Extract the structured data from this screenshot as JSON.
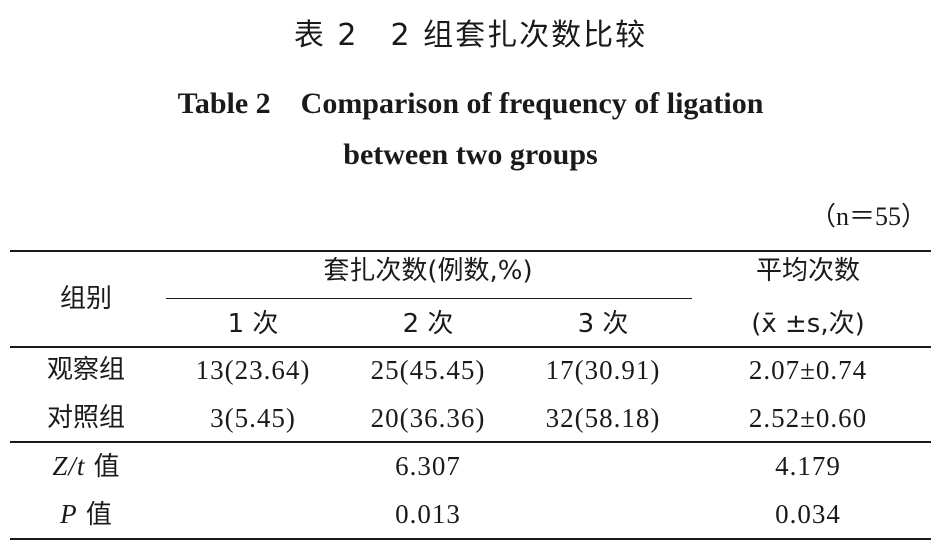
{
  "title_zh": "表 2　2 组套扎次数比较",
  "title_en_line1": "Table 2　Comparison of frequency of ligation",
  "title_en_line2": "between two groups",
  "note": "（n＝55）",
  "table": {
    "header": {
      "group": "组别",
      "ligation_count": "套扎次数(例数,%)",
      "col1": "1 次",
      "col2": "2 次",
      "col3": "3 次",
      "mean": "平均次数",
      "mean_unit": "(x̄ ±s,次)"
    },
    "rows": [
      {
        "group": "观察组",
        "c1": "13(23.64)",
        "c2": "25(45.45)",
        "c3": "17(30.91)",
        "mean": "2.07±0.74"
      },
      {
        "group": "对照组",
        "c1": "3(5.45)",
        "c2": "20(36.36)",
        "c3": "32(58.18)",
        "mean": "2.52±0.60"
      }
    ],
    "stats": [
      {
        "label_var": "Z/t",
        "label_suffix": " 值",
        "freq": "6.307",
        "mean": "4.179"
      },
      {
        "label_var": "P",
        "label_suffix": " 值",
        "freq": "0.013",
        "mean": "0.034"
      }
    ]
  }
}
